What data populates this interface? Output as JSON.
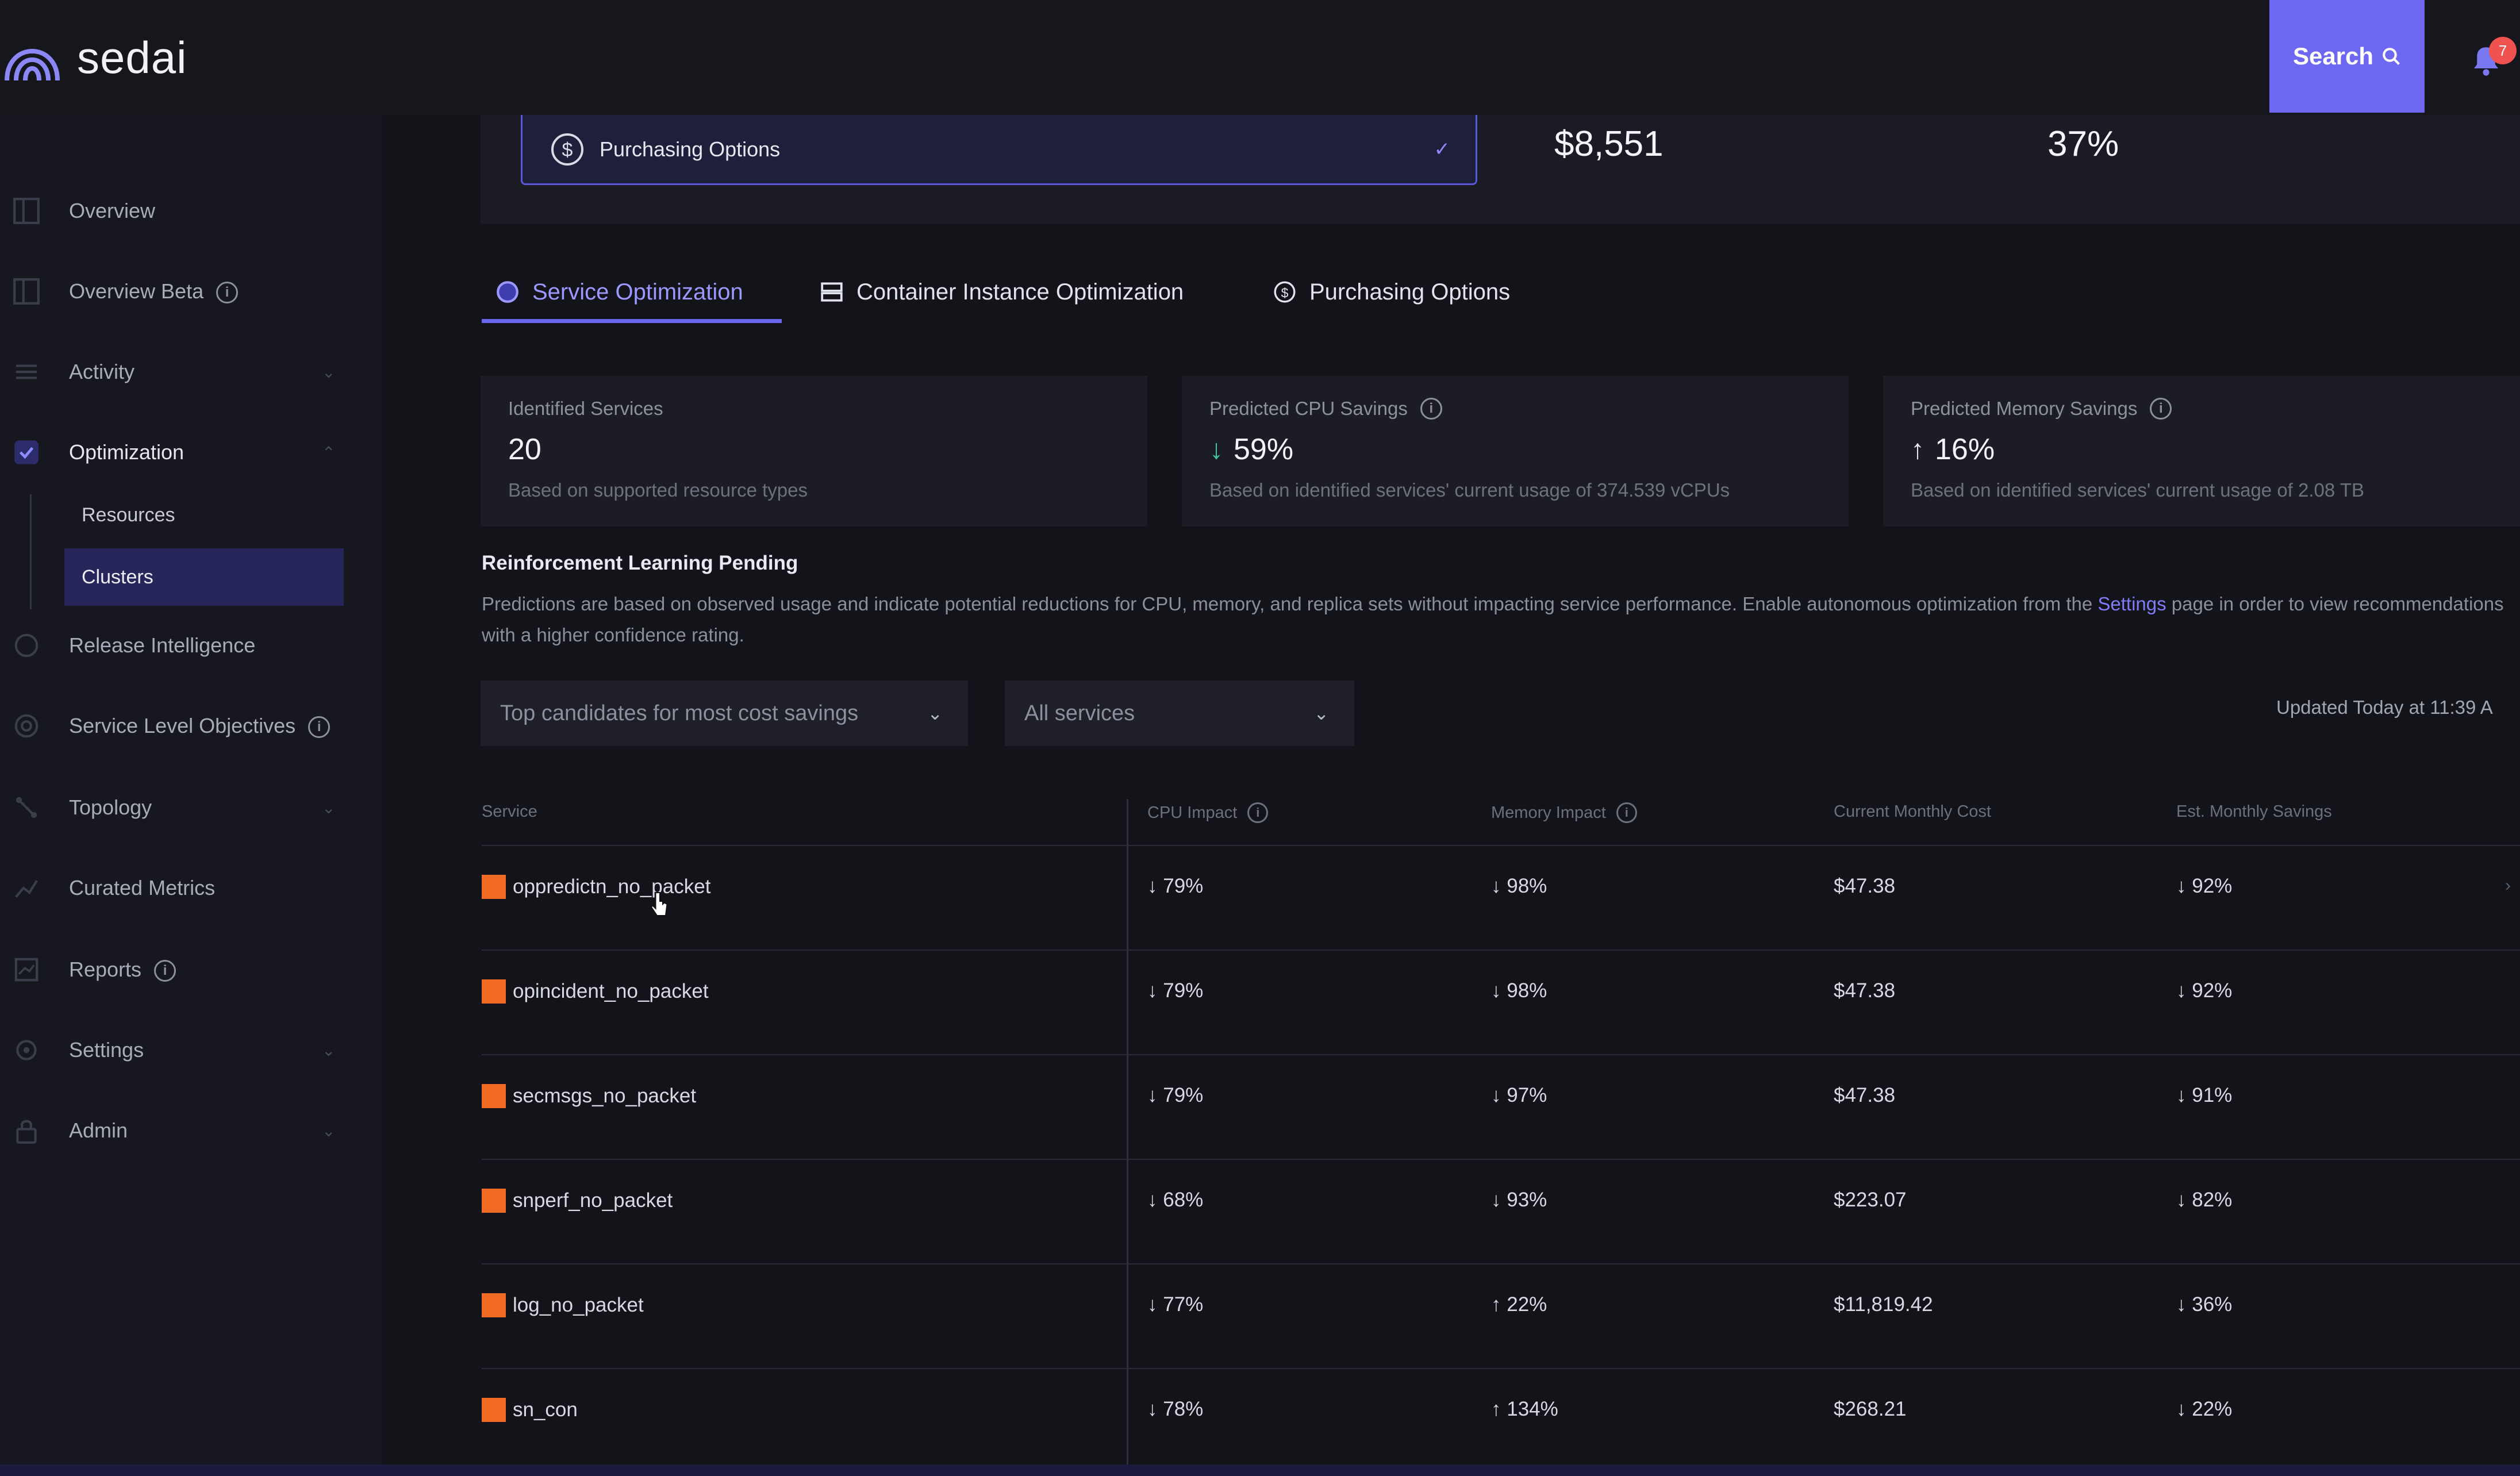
{
  "app": {
    "name": "sedai"
  },
  "header": {
    "search_label": "Search",
    "notification_count": "7"
  },
  "sidebar": {
    "items": [
      {
        "label": "Overview",
        "icon": "dashboard-icon"
      },
      {
        "label": "Overview Beta",
        "icon": "dashboard-icon",
        "info": true
      },
      {
        "label": "Activity",
        "icon": "list-icon"
      },
      {
        "label": "Optimization",
        "icon": "optimization-icon",
        "active": true
      },
      {
        "label": "Release Intelligence",
        "icon": "release-icon"
      },
      {
        "label": "Service Level Objectives",
        "icon": "target-icon",
        "info": true
      },
      {
        "label": "Topology",
        "icon": "topology-icon"
      },
      {
        "label": "Curated Metrics",
        "icon": "chart-icon"
      },
      {
        "label": "Reports",
        "icon": "report-icon",
        "info": true
      },
      {
        "label": "Settings",
        "icon": "gear-icon"
      },
      {
        "label": "Admin",
        "icon": "lock-icon"
      }
    ],
    "subitems": [
      {
        "label": "Resources"
      },
      {
        "label": "Clusters",
        "active": true
      }
    ]
  },
  "summary": {
    "dropdown_label": "Purchasing Options",
    "value_1": "$8,551",
    "value_2": "37%"
  },
  "tabs": [
    {
      "label": "Service Optimization",
      "active": true
    },
    {
      "label": "Container Instance Optimization"
    },
    {
      "label": "Purchasing Options"
    }
  ],
  "stats": [
    {
      "title": "Identified Services",
      "value": "20",
      "sub": "Based on supported resource types"
    },
    {
      "title": "Predicted CPU Savings",
      "value": "59%",
      "direction": "down",
      "sub": "Based on identified services' current usage of 374.539 vCPUs"
    },
    {
      "title": "Predicted Memory Savings",
      "value": "16%",
      "direction": "up",
      "sub": "Based on identified services' current usage of 2.08 TB"
    }
  ],
  "notice": {
    "title": "Reinforcement Learning Pending",
    "text_before_link": "Predictions are based on observed usage and indicate potential reductions for CPU, memory, and replica sets without impacting service performance. Enable autonomous optimization from the ",
    "link": "Settings",
    "text_after_link": " page in order to view recommendations with a higher confidence rating."
  },
  "filters": {
    "sort_label": "Top candidates for most cost savings",
    "service_filter": "All services",
    "updated": "Updated Today at 11:39 A"
  },
  "table": {
    "headers": [
      "Service",
      "CPU Impact",
      "Memory Impact",
      "Current Monthly Cost",
      "Est. Monthly Savings"
    ],
    "rows": [
      {
        "service": "oppredictn_no_packet",
        "cpu": "↓ 79%",
        "memory": "↓ 98%",
        "cost": "$47.38",
        "savings": "↓ 92%"
      },
      {
        "service": "opincident_no_packet",
        "cpu": "↓ 79%",
        "memory": "↓ 98%",
        "cost": "$47.38",
        "savings": "↓ 92%"
      },
      {
        "service": "secmsgs_no_packet",
        "cpu": "↓ 79%",
        "memory": "↓ 97%",
        "cost": "$47.38",
        "savings": "↓ 91%"
      },
      {
        "service": "snperf_no_packet",
        "cpu": "↓ 68%",
        "memory": "↓ 93%",
        "cost": "$223.07",
        "savings": "↓ 82%"
      },
      {
        "service": "log_no_packet",
        "cpu": "↓ 77%",
        "memory": "↑ 22%",
        "cost": "$11,819.42",
        "savings": "↓ 36%"
      },
      {
        "service": "sn_con",
        "cpu": "↓ 78%",
        "memory": "↑ 134%",
        "cost": "$268.21",
        "savings": "↓ 22%"
      }
    ]
  },
  "colors": {
    "accent": "#6d67f2",
    "service_marker": "#f06a24",
    "positive": "#3fc7a8"
  }
}
